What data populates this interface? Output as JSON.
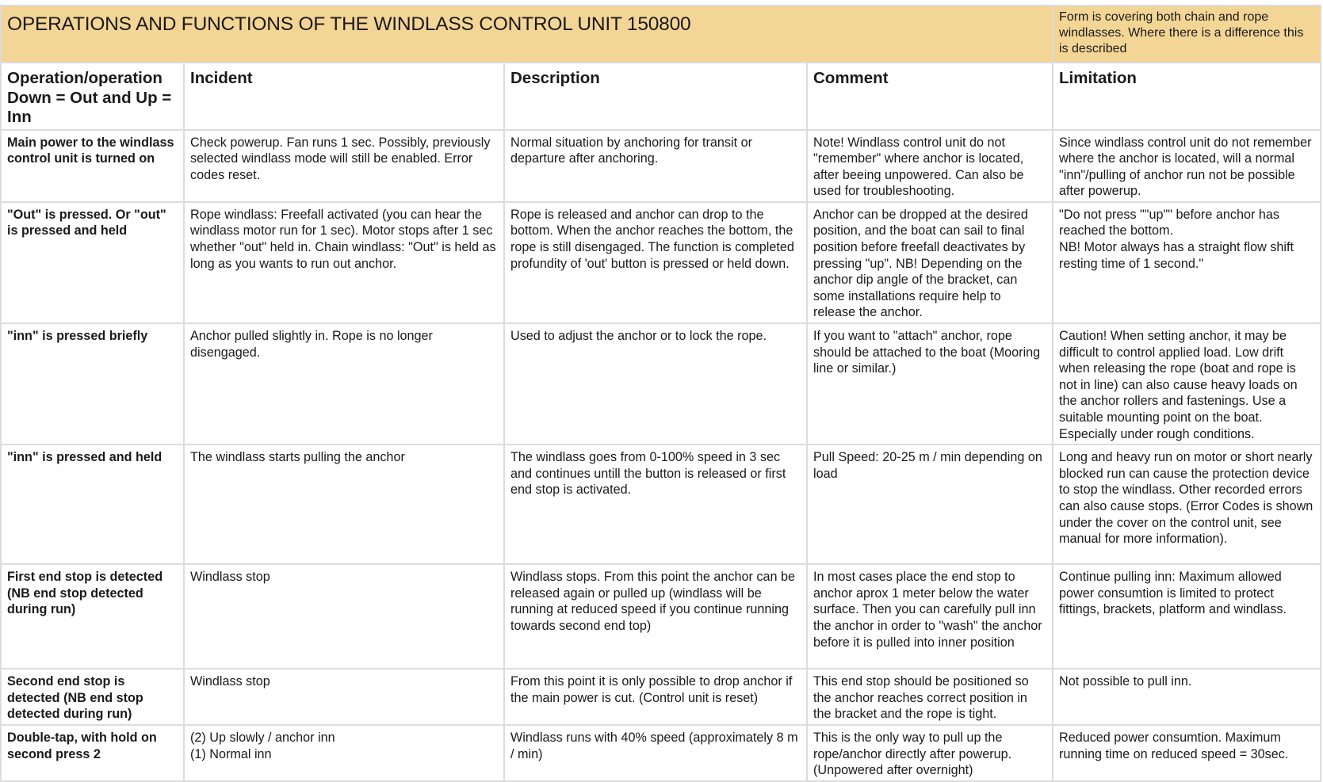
{
  "title": "OPERATIONS AND FUNCTIONS OF THE WINDLASS CONTROL UNIT 150800",
  "note": "Form is covering both chain and rope windlasses. Where there is a difference this is described",
  "header_color": "#f3d596",
  "columns": [
    "Operation/operation Down = Out and Up = Inn",
    "Incident",
    "Description",
    "Comment",
    "Limitation"
  ],
  "rows": [
    {
      "operation": "Main power to the windlass control unit is turned on",
      "incident": "Check powerup. Fan runs 1 sec. Possibly, previously selected windlass mode will still be enabled. Error codes reset.",
      "description": "Normal situation by anchoring for transit or departure after anchoring.",
      "comment": "Note! Windlass control unit do not \"remember\" where anchor is located, after beeing unpowered.  Can also be used for troubleshooting.",
      "limitation": "Since windlass control unit do not remember where the anchor is located, will a normal \"inn\"/pulling of anchor run not be possible after powerup."
    },
    {
      "operation": "\"Out\" is pressed. Or \"out\" is pressed and held",
      "incident": "Rope windlass: Freefall activated (you can hear the windlass motor run for 1 sec). Motor stops after 1 sec whether \"out\" held in. Chain windlass: \"Out\" is held as long as you wants to run out anchor.",
      "description": "Rope is released and anchor can drop to the bottom. When the anchor reaches the bottom, the rope is still disengaged. The function is completed profundity of 'out' button is pressed or held down.",
      "comment": "Anchor can be dropped at the desired position, and the boat can sail to final position before freefall deactivates by pressing \"up\". NB! Depending on the anchor dip angle of the bracket, can some installations require help to release the anchor.",
      "limitation": "\"Do not press \"\"up\"\" before anchor has reached the bottom.\n NB! Motor always has a straight flow shift resting time of 1 second.\""
    },
    {
      "operation": "\"inn\" is pressed briefly",
      "incident": "Anchor pulled slightly in. Rope is no longer disengaged.",
      "description": "Used to adjust the anchor or to lock the rope.",
      "comment": "If you want to \"attach\" anchor, rope should be attached to the boat (Mooring line or similar.)",
      "limitation": "Caution! When setting anchor, it may be difficult to control applied load. Low drift when releasing the rope (boat and rope is not in line) can also cause heavy loads on the anchor rollers and fastenings. Use a suitable mounting point on the boat. Especially under rough conditions."
    },
    {
      "operation": "\"inn\" is pressed and held",
      "incident": "The windlass starts pulling the anchor",
      "description": "The windlass goes from 0-100% speed in 3 sec and continues untill the button is released or first end stop is activated.",
      "comment": "Pull Speed: 20-25 m / min depending on load",
      "limitation": "Long and heavy run on motor or short nearly blocked run can cause the protection device to  stop the windlass. Other recorded errors can also cause stops. (Error Codes is shown under the cover on the control unit, see manual for more information)."
    },
    {
      "operation": "First end stop is detected (NB end stop detected during run)",
      "incident": "Windlass stop",
      "description": "Windlass stops. From this point the anchor can be released again or pulled up (windlass will be running at reduced speed if you continue running towards second end top)",
      "comment": "In most cases place the end stop to anchor aprox 1 meter below the water surface. Then you can carefully pull inn the anchor in order to \"wash\" the anchor before it is pulled into inner position",
      "limitation": "Continue pulling inn: Maximum allowed power consumtion is limited to protect fittings, brackets, platform and windlass."
    },
    {
      "operation": "Second end stop is detected (NB end stop detected during run)",
      "incident": "Windlass stop",
      "description": "From this point it is only possible to drop anchor if the main power is cut.  (Control unit is reset)",
      "comment": "This end stop should be positioned so the anchor reaches correct position in the  bracket and the rope is tight.",
      "limitation": "Not possible to pull inn."
    },
    {
      "operation": "Double-tap, with hold on second press 2",
      "incident": "(2) Up slowly / anchor  inn\n(1) Normal inn",
      "description": "Windlass runs with 40% speed (approximately 8 m / min)",
      "comment": "This is the only way to pull up the rope/anchor directly after powerup. (Unpowered after overnight)",
      "limitation": "Reduced power consumtion. Maximum running time on reduced speed = 30sec."
    }
  ]
}
